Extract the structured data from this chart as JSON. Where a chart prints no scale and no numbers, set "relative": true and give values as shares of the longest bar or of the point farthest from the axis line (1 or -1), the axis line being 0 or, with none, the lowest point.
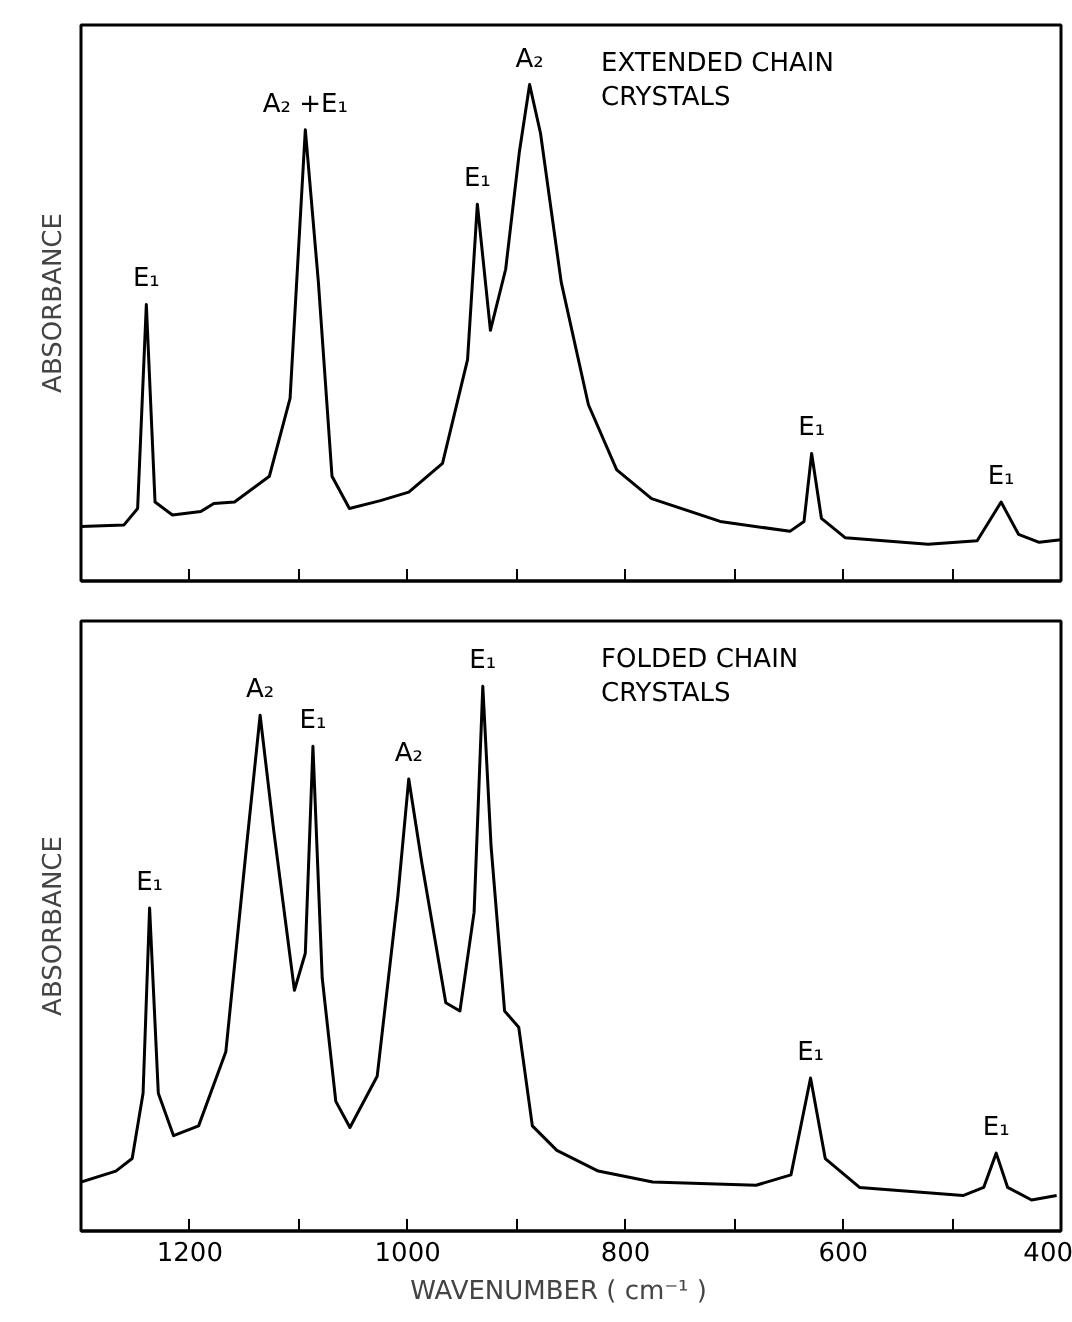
{
  "chart_data": [
    {
      "type": "line",
      "relative": true,
      "ylabel": "ABSORBANCE",
      "xlim": [
        1300,
        400
      ],
      "xticks": [
        {
          "value": 1200,
          "label": null
        },
        {
          "value": 1100,
          "label": null
        },
        {
          "value": 1000,
          "label": null
        },
        {
          "value": 900,
          "label": null
        },
        {
          "value": 800,
          "label": null
        },
        {
          "value": 700,
          "label": null
        },
        {
          "value": 600,
          "label": null
        },
        {
          "value": 500,
          "label": null
        },
        {
          "value": 400,
          "label": null
        }
      ],
      "tick_labels": false,
      "grid": false,
      "marker": "none",
      "line_style": "solid",
      "series": [
        {
          "color": "#000000",
          "x": [
            1300,
            1260.5,
            1248,
            1240,
            1232,
            1216,
            1190,
            1178,
            1159,
            1127,
            1108,
            1094,
            1082,
            1069.5,
            1053.5,
            1025,
            999,
            968,
            945,
            936,
            924,
            910,
            897.5,
            888,
            878,
            859,
            834,
            808,
            776,
            713,
            649,
            636,
            629,
            620,
            598,
            522,
            477,
            455,
            439,
            420,
            400
          ],
          "values": [
            0.11,
            0.113,
            0.146,
            0.557,
            0.159,
            0.133,
            0.14,
            0.156,
            0.159,
            0.211,
            0.368,
            0.909,
            0.602,
            0.211,
            0.146,
            0.162,
            0.179,
            0.237,
            0.446,
            0.759,
            0.505,
            0.628,
            0.863,
            1.0,
            0.902,
            0.602,
            0.355,
            0.224,
            0.166,
            0.12,
            0.1,
            0.12,
            0.257,
            0.126,
            0.087,
            0.074,
            0.081,
            0.159,
            0.094,
            0.078,
            0.083
          ]
        }
      ],
      "annotations": [
        "EXTENDED CHAIN\nCRYSTALS",
        {
          "text": "E₁",
          "x": 1240,
          "y": 0.557
        },
        {
          "text": "A₂ +E₁",
          "x": 1094,
          "y": 0.909
        },
        {
          "text": "E₁",
          "x": 936,
          "y": 0.759
        },
        {
          "text": "A₂",
          "x": 888,
          "y": 1.0
        },
        {
          "text": "E₁",
          "x": 629,
          "y": 0.257
        },
        {
          "text": "E₁",
          "x": 455,
          "y": 0.159
        }
      ]
    },
    {
      "type": "line",
      "relative": true,
      "ylabel": "ABSORBANCE",
      "xlabel": "WAVENUMBER    ( cm⁻¹ )",
      "xlim": [
        1300,
        400
      ],
      "xticks": [
        1200,
        {
          "value": 1100,
          "label": null
        },
        1000,
        {
          "value": 900,
          "label": null
        },
        800,
        {
          "value": 700,
          "label": null
        },
        600,
        {
          "value": 500,
          "label": null
        },
        400
      ],
      "tick_labels": "x",
      "grid": false,
      "marker": "none",
      "line_style": "solid",
      "series": [
        {
          "color": "#000000",
          "x": [
            1300,
            1268,
            1253,
            1243,
            1237,
            1229,
            1215,
            1192,
            1167,
            1148,
            1135.5,
            1123,
            1104,
            1094,
            1087,
            1078.5,
            1066,
            1053,
            1028,
            1009,
            999,
            987,
            965,
            952,
            939,
            931,
            923.4,
            911,
            898,
            885.5,
            863,
            825,
            775,
            680,
            648,
            630,
            616.5,
            585,
            490,
            471,
            459.5,
            449,
            427,
            404
          ],
          "values": [
            0.09,
            0.11,
            0.133,
            0.253,
            0.593,
            0.253,
            0.175,
            0.193,
            0.329,
            0.706,
            0.947,
            0.735,
            0.442,
            0.51,
            0.89,
            0.465,
            0.238,
            0.19,
            0.284,
            0.615,
            0.83,
            0.676,
            0.419,
            0.404,
            0.585,
            1.0,
            0.706,
            0.404,
            0.374,
            0.193,
            0.148,
            0.11,
            0.09,
            0.084,
            0.103,
            0.281,
            0.133,
            0.08,
            0.065,
            0.08,
            0.143,
            0.08,
            0.057,
            0.065
          ]
        }
      ],
      "annotations": [
        "FOLDED CHAIN\nCRYSTALS",
        {
          "text": "E₁",
          "x": 1237,
          "y": 0.593
        },
        {
          "text": "A₂",
          "x": 1135.5,
          "y": 0.947
        },
        {
          "text": "E₁",
          "x": 1087,
          "y": 0.89
        },
        {
          "text": "A₂",
          "x": 999,
          "y": 0.83
        },
        {
          "text": "E₁",
          "x": 931,
          "y": 1.0
        },
        {
          "text": "E₁",
          "x": 630,
          "y": 0.281
        },
        {
          "text": "E₁",
          "x": 459.5,
          "y": 0.143
        }
      ]
    }
  ]
}
